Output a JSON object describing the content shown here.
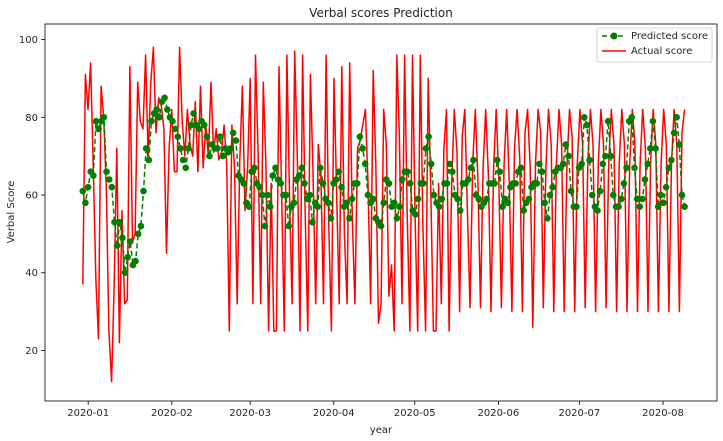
{
  "chart_data": {
    "type": "line",
    "title": "Verbal scores Prediction",
    "xlabel": "year",
    "ylabel": "Verbal Score",
    "x_start_date": "2019-12-30",
    "x_end_date": "2020-08-09",
    "xlim": [
      "2019-12-16",
      "2020-08-21"
    ],
    "ylim": [
      7,
      104
    ],
    "xticks": [
      {
        "date": "2020-01-01",
        "label": "2020-01"
      },
      {
        "date": "2020-02-01",
        "label": "2020-02"
      },
      {
        "date": "2020-03-01",
        "label": "2020-03"
      },
      {
        "date": "2020-04-01",
        "label": "2020-04"
      },
      {
        "date": "2020-05-01",
        "label": "2020-05"
      },
      {
        "date": "2020-06-01",
        "label": "2020-06"
      },
      {
        "date": "2020-07-01",
        "label": "2020-07"
      },
      {
        "date": "2020-08-01",
        "label": "2020-08"
      }
    ],
    "yticks": [
      20,
      40,
      60,
      80,
      100
    ],
    "grid": false,
    "legend_position": "top-right",
    "series": [
      {
        "name": "Predicted score",
        "style": "dashed-with-markers",
        "color": "#007f00",
        "values": [
          61,
          58,
          62,
          66,
          65,
          79,
          77,
          79,
          80,
          66,
          64,
          62,
          53,
          47,
          53,
          49,
          40,
          44,
          48,
          42,
          43,
          50,
          52,
          61,
          72,
          69,
          79,
          81,
          82,
          80,
          84,
          85,
          82,
          80,
          79,
          77,
          75,
          72,
          69,
          67,
          72,
          78,
          81,
          78,
          77,
          79,
          78,
          75,
          70,
          73,
          72,
          72,
          75,
          70,
          72,
          71,
          72,
          76,
          74,
          65,
          64,
          63,
          58,
          57,
          66,
          67,
          63,
          62,
          60,
          52,
          60,
          57,
          65,
          67,
          64,
          63,
          60,
          60,
          52,
          57,
          58,
          64,
          65,
          67,
          63,
          59,
          60,
          53,
          58,
          57,
          67,
          63,
          59,
          58,
          54,
          63,
          64,
          66,
          62,
          57,
          58,
          54,
          59,
          63,
          63,
          75,
          72,
          68,
          60,
          58,
          59,
          54,
          53,
          52,
          58,
          64,
          63,
          57,
          58,
          54,
          57,
          64,
          66,
          66,
          63,
          56,
          55,
          59,
          63,
          63,
          72,
          75,
          68,
          60,
          58,
          57,
          59,
          63,
          63,
          68,
          66,
          60,
          59,
          56,
          63,
          63,
          64,
          67,
          69,
          60,
          59,
          57,
          58,
          59,
          63,
          63,
          63,
          69,
          66,
          57,
          59,
          58,
          62,
          63,
          63,
          66,
          67,
          56,
          58,
          59,
          62,
          63,
          63,
          68,
          66,
          58,
          54,
          60,
          62,
          66,
          67,
          67,
          68,
          73,
          70,
          61,
          57,
          57,
          67,
          68,
          80,
          78,
          69,
          60,
          57,
          56,
          61,
          68,
          70,
          79,
          70,
          60,
          57,
          57,
          59,
          63,
          67,
          79,
          80,
          67,
          59,
          57,
          59,
          64,
          68,
          72,
          79,
          72,
          57,
          60,
          58,
          62,
          67,
          69,
          76,
          80,
          73,
          60,
          57
        ]
      },
      {
        "name": "Actual score",
        "style": "solid",
        "color": "#ff0000",
        "values": [
          37,
          91,
          82,
          94,
          68,
          38,
          23,
          88,
          80,
          62,
          25,
          12,
          37,
          72,
          22,
          56,
          32,
          33,
          93,
          48,
          50,
          89,
          79,
          77,
          96,
          69,
          89,
          98,
          76,
          85,
          83,
          77,
          45,
          72,
          82,
          66,
          66,
          98,
          79,
          70,
          82,
          73,
          70,
          84,
          66,
          88,
          67,
          78,
          70,
          89,
          71,
          77,
          69,
          71,
          78,
          68,
          25,
          78,
          67,
          32,
          69,
          88,
          56,
          67,
          90,
          32,
          96,
          71,
          32,
          89,
          68,
          25,
          63,
          25,
          25,
          93,
          61,
          25,
          96,
          60,
          32,
          97,
          70,
          25,
          96,
          55,
          25,
          91,
          66,
          32,
          73,
          65,
          32,
          96,
          53,
          25,
          90,
          61,
          32,
          93,
          50,
          32,
          94,
          54,
          32,
          72,
          74,
          78,
          82,
          63,
          32,
          92,
          68,
          27,
          32,
          82,
          73,
          34,
          42,
          25,
          96,
          75,
          32,
          96,
          55,
          25,
          96,
          54,
          25,
          96,
          52,
          25,
          90,
          61,
          25,
          25,
          63,
          32,
          72,
          82,
          25,
          63,
          82,
          71,
          30,
          75,
          82,
          56,
          31,
          68,
          82,
          64,
          31,
          67,
          82,
          65,
          30,
          67,
          82,
          64,
          31,
          68,
          82,
          63,
          30,
          72,
          82,
          69,
          30,
          76,
          82,
          67,
          26,
          68,
          82,
          76,
          31,
          67,
          82,
          73,
          30,
          68,
          82,
          73,
          30,
          67,
          82,
          75,
          30,
          68,
          82,
          73,
          31,
          68,
          82,
          73,
          30,
          68,
          82,
          73,
          31,
          68,
          82,
          73,
          30,
          68,
          82,
          73,
          30,
          68,
          82,
          73,
          30,
          68,
          82,
          72,
          30,
          68,
          82,
          73,
          30,
          68,
          82,
          73,
          30,
          68,
          82,
          73,
          30,
          76,
          82
        ]
      }
    ]
  }
}
